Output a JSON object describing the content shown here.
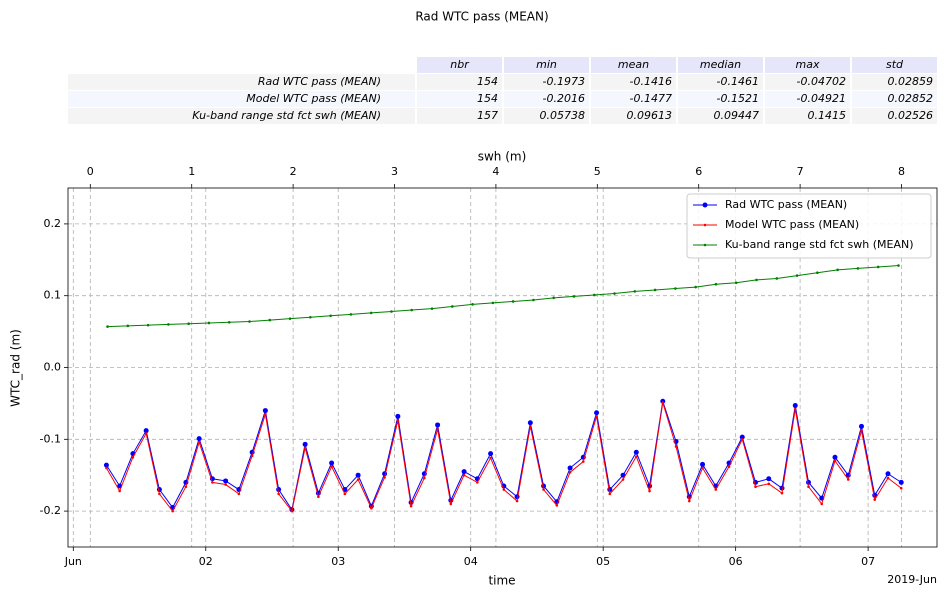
{
  "chart_data": {
    "type": "line",
    "title": "Rad WTC pass (MEAN)",
    "table": {
      "columns": [
        "nbr",
        "min",
        "mean",
        "median",
        "max",
        "std"
      ],
      "rows": [
        [
          "Rad WTC pass (MEAN)",
          "154",
          "-0.1973",
          "-0.1416",
          "-0.1461",
          "-0.04702",
          "0.02859"
        ],
        [
          "Model WTC pass (MEAN)",
          "154",
          "-0.2016",
          "-0.1477",
          "-0.1521",
          "-0.04921",
          "0.02852"
        ],
        [
          "Ku-band range std fct swh (MEAN)",
          "157",
          "0.05738",
          "0.09613",
          "0.09447",
          "0.1415",
          "0.02526"
        ]
      ]
    },
    "xlabel": "time",
    "x_offset_label": "2019-Jun",
    "x2label": "swh (m)",
    "ylabel": "WTC_rad (m)",
    "xlim": [
      0.96,
      7.52
    ],
    "xticks": [
      {
        "value": 1,
        "label": "Jun"
      },
      {
        "value": 2,
        "label": "02"
      },
      {
        "value": 3,
        "label": "03"
      },
      {
        "value": 4,
        "label": "04"
      },
      {
        "value": 5,
        "label": "05"
      },
      {
        "value": 6,
        "label": "06"
      },
      {
        "value": 7,
        "label": "07"
      }
    ],
    "x2lim": [
      -0.22,
      8.35
    ],
    "x2ticks": [
      0,
      1,
      2,
      3,
      4,
      5,
      6,
      7,
      8
    ],
    "ylim": [
      -0.25,
      0.25
    ],
    "yticks": [
      -0.2,
      -0.1,
      {
        "value": 0,
        "label": "0.0"
      },
      0.1,
      0.2
    ],
    "grid": true,
    "legend": "upper right",
    "series": [
      {
        "name": "Rad WTC pass (MEAN)",
        "color": "#0000ff",
        "x": [
          1.25,
          1.35,
          1.45,
          1.55,
          1.65,
          1.75,
          1.85,
          1.95,
          2.05,
          2.15,
          2.25,
          2.35,
          2.45,
          2.55,
          2.65,
          2.75,
          2.85,
          2.95,
          3.05,
          3.15,
          3.25,
          3.35,
          3.45,
          3.55,
          3.65,
          3.75,
          3.85,
          3.95,
          4.05,
          4.15,
          4.25,
          4.35,
          4.45,
          4.55,
          4.65,
          4.75,
          4.85,
          4.95,
          5.05,
          5.15,
          5.25,
          5.35,
          5.45,
          5.55,
          5.65,
          5.75,
          5.85,
          5.95,
          6.05,
          6.15,
          6.25,
          6.35,
          6.45,
          6.55,
          6.65,
          6.75,
          6.85,
          6.95,
          7.05,
          7.15,
          7.25
        ],
        "values": [
          -0.136,
          -0.165,
          -0.12,
          -0.088,
          -0.17,
          -0.195,
          -0.16,
          -0.099,
          -0.155,
          -0.158,
          -0.17,
          -0.118,
          -0.06,
          -0.17,
          -0.198,
          -0.107,
          -0.175,
          -0.133,
          -0.17,
          -0.15,
          -0.193,
          -0.148,
          -0.068,
          -0.188,
          -0.148,
          -0.08,
          -0.185,
          -0.145,
          -0.155,
          -0.12,
          -0.165,
          -0.18,
          -0.077,
          -0.165,
          -0.187,
          -0.14,
          -0.125,
          -0.063,
          -0.17,
          -0.15,
          -0.118,
          -0.165,
          -0.047,
          -0.103,
          -0.18,
          -0.135,
          -0.165,
          -0.133,
          -0.097,
          -0.16,
          -0.155,
          -0.168,
          -0.053,
          -0.16,
          -0.182,
          -0.125,
          -0.15,
          -0.082,
          -0.178,
          -0.148,
          -0.16
        ]
      },
      {
        "name": "Model WTC pass (MEAN)",
        "color": "#ff0000",
        "x": [
          1.25,
          1.35,
          1.45,
          1.55,
          1.65,
          1.75,
          1.85,
          1.95,
          2.05,
          2.15,
          2.25,
          2.35,
          2.45,
          2.55,
          2.65,
          2.75,
          2.85,
          2.95,
          3.05,
          3.15,
          3.25,
          3.35,
          3.45,
          3.55,
          3.65,
          3.75,
          3.85,
          3.95,
          4.05,
          4.15,
          4.25,
          4.35,
          4.45,
          4.55,
          4.65,
          4.75,
          4.85,
          4.95,
          5.05,
          5.15,
          5.25,
          5.35,
          5.45,
          5.55,
          5.65,
          5.75,
          5.85,
          5.95,
          6.05,
          6.15,
          6.25,
          6.35,
          6.45,
          6.55,
          6.65,
          6.75,
          6.85,
          6.95,
          7.05,
          7.15,
          7.25
        ],
        "values": [
          -0.14,
          -0.172,
          -0.125,
          -0.092,
          -0.176,
          -0.2,
          -0.166,
          -0.104,
          -0.16,
          -0.163,
          -0.176,
          -0.123,
          -0.065,
          -0.176,
          -0.2,
          -0.112,
          -0.18,
          -0.138,
          -0.176,
          -0.156,
          -0.196,
          -0.153,
          -0.074,
          -0.193,
          -0.154,
          -0.086,
          -0.19,
          -0.15,
          -0.16,
          -0.126,
          -0.17,
          -0.186,
          -0.082,
          -0.17,
          -0.192,
          -0.146,
          -0.131,
          -0.068,
          -0.176,
          -0.156,
          -0.124,
          -0.172,
          -0.049,
          -0.11,
          -0.186,
          -0.14,
          -0.17,
          -0.138,
          -0.1,
          -0.166,
          -0.162,
          -0.175,
          -0.058,
          -0.166,
          -0.19,
          -0.13,
          -0.156,
          -0.088,
          -0.184,
          -0.154,
          -0.168
        ]
      },
      {
        "name": "Ku-band range std fct swh (MEAN)",
        "color": "#008000",
        "axis": "x2",
        "x": [
          0.17,
          0.37,
          0.57,
          0.77,
          0.97,
          1.17,
          1.37,
          1.57,
          1.77,
          1.97,
          2.17,
          2.37,
          2.57,
          2.77,
          2.97,
          3.17,
          3.37,
          3.57,
          3.77,
          3.97,
          4.17,
          4.37,
          4.57,
          4.77,
          4.97,
          5.17,
          5.37,
          5.57,
          5.77,
          5.97,
          6.17,
          6.37,
          6.57,
          6.77,
          6.97,
          7.17,
          7.37,
          7.57,
          7.77,
          7.97
        ],
        "values": [
          0.057,
          0.058,
          0.059,
          0.06,
          0.061,
          0.062,
          0.063,
          0.064,
          0.066,
          0.068,
          0.07,
          0.072,
          0.074,
          0.076,
          0.078,
          0.08,
          0.082,
          0.085,
          0.088,
          0.09,
          0.092,
          0.094,
          0.097,
          0.099,
          0.101,
          0.103,
          0.106,
          0.108,
          0.11,
          0.112,
          0.116,
          0.118,
          0.122,
          0.124,
          0.128,
          0.132,
          0.136,
          0.138,
          0.14,
          0.142
        ]
      }
    ]
  }
}
